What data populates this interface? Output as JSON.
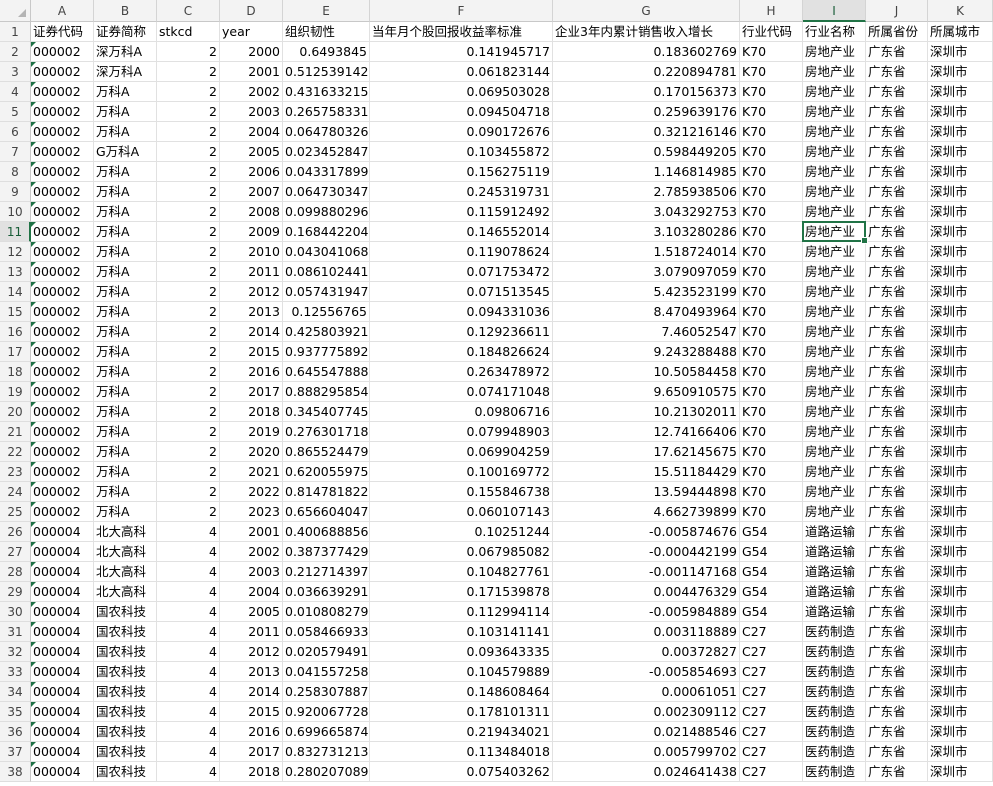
{
  "sheet": {
    "columns": [
      "A",
      "B",
      "C",
      "D",
      "E",
      "F",
      "G",
      "H",
      "I",
      "J",
      "K"
    ],
    "selected_cell": "I11",
    "accent_color": "#217346",
    "header_row": [
      "证券代码",
      "证券简称",
      "stkcd",
      "year",
      "组织韧性",
      "当年月个股回报收益率标准",
      "企业3年内累计销售收入增长",
      "行业代码",
      "行业名称",
      "所属省份",
      "所属城市"
    ],
    "rows": [
      [
        "000002",
        "深万科A",
        "2",
        "2000",
        "0.6493845",
        "0.141945717",
        "0.183602769",
        "K70",
        "房地产业",
        "广东省",
        "深圳市"
      ],
      [
        "000002",
        "深万科A",
        "2",
        "2001",
        "0.512539142",
        "0.061823144",
        "0.220894781",
        "K70",
        "房地产业",
        "广东省",
        "深圳市"
      ],
      [
        "000002",
        "万科A",
        "2",
        "2002",
        "0.431633215",
        "0.069503028",
        "0.170156373",
        "K70",
        "房地产业",
        "广东省",
        "深圳市"
      ],
      [
        "000002",
        "万科A",
        "2",
        "2003",
        "0.265758331",
        "0.094504718",
        "0.259639176",
        "K70",
        "房地产业",
        "广东省",
        "深圳市"
      ],
      [
        "000002",
        "万科A",
        "2",
        "2004",
        "0.064780326",
        "0.090172676",
        "0.321216146",
        "K70",
        "房地产业",
        "广东省",
        "深圳市"
      ],
      [
        "000002",
        "G万科A",
        "2",
        "2005",
        "0.023452847",
        "0.103455872",
        "0.598449205",
        "K70",
        "房地产业",
        "广东省",
        "深圳市"
      ],
      [
        "000002",
        "万科A",
        "2",
        "2006",
        "0.043317899",
        "0.156275119",
        "1.146814985",
        "K70",
        "房地产业",
        "广东省",
        "深圳市"
      ],
      [
        "000002",
        "万科A",
        "2",
        "2007",
        "0.064730347",
        "0.245319731",
        "2.785938506",
        "K70",
        "房地产业",
        "广东省",
        "深圳市"
      ],
      [
        "000002",
        "万科A",
        "2",
        "2008",
        "0.099880296",
        "0.115912492",
        "3.043292753",
        "K70",
        "房地产业",
        "广东省",
        "深圳市"
      ],
      [
        "000002",
        "万科A",
        "2",
        "2009",
        "0.168442204",
        "0.146552014",
        "3.103280286",
        "K70",
        "房地产业",
        "广东省",
        "深圳市"
      ],
      [
        "000002",
        "万科A",
        "2",
        "2010",
        "0.043041068",
        "0.119078624",
        "1.518724014",
        "K70",
        "房地产业",
        "广东省",
        "深圳市"
      ],
      [
        "000002",
        "万科A",
        "2",
        "2011",
        "0.086102441",
        "0.071753472",
        "3.079097059",
        "K70",
        "房地产业",
        "广东省",
        "深圳市"
      ],
      [
        "000002",
        "万科A",
        "2",
        "2012",
        "0.057431947",
        "0.071513545",
        "5.423523199",
        "K70",
        "房地产业",
        "广东省",
        "深圳市"
      ],
      [
        "000002",
        "万科A",
        "2",
        "2013",
        "0.12556765",
        "0.094331036",
        "8.470493964",
        "K70",
        "房地产业",
        "广东省",
        "深圳市"
      ],
      [
        "000002",
        "万科A",
        "2",
        "2014",
        "0.425803921",
        "0.129236611",
        "7.46052547",
        "K70",
        "房地产业",
        "广东省",
        "深圳市"
      ],
      [
        "000002",
        "万科A",
        "2",
        "2015",
        "0.937775892",
        "0.184826624",
        "9.243288488",
        "K70",
        "房地产业",
        "广东省",
        "深圳市"
      ],
      [
        "000002",
        "万科A",
        "2",
        "2016",
        "0.645547888",
        "0.263478972",
        "10.50584458",
        "K70",
        "房地产业",
        "广东省",
        "深圳市"
      ],
      [
        "000002",
        "万科A",
        "2",
        "2017",
        "0.888295854",
        "0.074171048",
        "9.650910575",
        "K70",
        "房地产业",
        "广东省",
        "深圳市"
      ],
      [
        "000002",
        "万科A",
        "2",
        "2018",
        "0.345407745",
        "0.09806716",
        "10.21302011",
        "K70",
        "房地产业",
        "广东省",
        "深圳市"
      ],
      [
        "000002",
        "万科A",
        "2",
        "2019",
        "0.276301718",
        "0.079948903",
        "12.74166406",
        "K70",
        "房地产业",
        "广东省",
        "深圳市"
      ],
      [
        "000002",
        "万科A",
        "2",
        "2020",
        "0.865524479",
        "0.069904259",
        "17.62145675",
        "K70",
        "房地产业",
        "广东省",
        "深圳市"
      ],
      [
        "000002",
        "万科A",
        "2",
        "2021",
        "0.620055975",
        "0.100169772",
        "15.51184429",
        "K70",
        "房地产业",
        "广东省",
        "深圳市"
      ],
      [
        "000002",
        "万科A",
        "2",
        "2022",
        "0.814781822",
        "0.155846738",
        "13.59444898",
        "K70",
        "房地产业",
        "广东省",
        "深圳市"
      ],
      [
        "000002",
        "万科A",
        "2",
        "2023",
        "0.656604047",
        "0.060107143",
        "4.662739899",
        "K70",
        "房地产业",
        "广东省",
        "深圳市"
      ],
      [
        "000004",
        "北大高科",
        "4",
        "2001",
        "0.400688856",
        "0.10251244",
        "-0.005874676",
        "G54",
        "道路运输",
        "广东省",
        "深圳市"
      ],
      [
        "000004",
        "北大高科",
        "4",
        "2002",
        "0.387377429",
        "0.067985082",
        "-0.000442199",
        "G54",
        "道路运输",
        "广东省",
        "深圳市"
      ],
      [
        "000004",
        "北大高科",
        "4",
        "2003",
        "0.212714397",
        "0.104827761",
        "-0.001147168",
        "G54",
        "道路运输",
        "广东省",
        "深圳市"
      ],
      [
        "000004",
        "北大高科",
        "4",
        "2004",
        "0.036639291",
        "0.171539878",
        "0.004476329",
        "G54",
        "道路运输",
        "广东省",
        "深圳市"
      ],
      [
        "000004",
        "国农科技",
        "4",
        "2005",
        "0.010808279",
        "0.112994114",
        "-0.005984889",
        "G54",
        "道路运输",
        "广东省",
        "深圳市"
      ],
      [
        "000004",
        "国农科技",
        "4",
        "2011",
        "0.058466933",
        "0.103141141",
        "0.003118889",
        "C27",
        "医药制造",
        "广东省",
        "深圳市"
      ],
      [
        "000004",
        "国农科技",
        "4",
        "2012",
        "0.020579491",
        "0.093643335",
        "0.00372827",
        "C27",
        "医药制造",
        "广东省",
        "深圳市"
      ],
      [
        "000004",
        "国农科技",
        "4",
        "2013",
        "0.041557258",
        "0.104579889",
        "-0.005854693",
        "C27",
        "医药制造",
        "广东省",
        "深圳市"
      ],
      [
        "000004",
        "国农科技",
        "4",
        "2014",
        "0.258307887",
        "0.148608464",
        "0.00061051",
        "C27",
        "医药制造",
        "广东省",
        "深圳市"
      ],
      [
        "000004",
        "国农科技",
        "4",
        "2015",
        "0.920067728",
        "0.178101311",
        "0.002309112",
        "C27",
        "医药制造",
        "广东省",
        "深圳市"
      ],
      [
        "000004",
        "国农科技",
        "4",
        "2016",
        "0.699665874",
        "0.219434021",
        "0.021488546",
        "C27",
        "医药制造",
        "广东省",
        "深圳市"
      ],
      [
        "000004",
        "国农科技",
        "4",
        "2017",
        "0.832731213",
        "0.113484018",
        "0.005799702",
        "C27",
        "医药制造",
        "广东省",
        "深圳市"
      ],
      [
        "000004",
        "国农科技",
        "4",
        "2018",
        "0.280207089",
        "0.075403262",
        "0.024641438",
        "C27",
        "医药制造",
        "广东省",
        "深圳市"
      ]
    ]
  }
}
